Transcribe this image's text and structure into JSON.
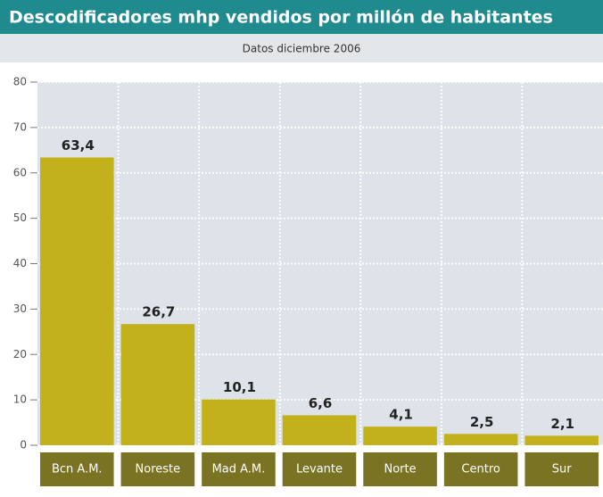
{
  "chart_data": {
    "type": "bar",
    "title": "Descodificadores mhp vendidos por millón de habitantes",
    "subtitle": "Datos diciembre 2006",
    "categories": [
      "Bcn A.M.",
      "Noreste",
      "Mad A.M.",
      "Levante",
      "Norte",
      "Centro",
      "Sur"
    ],
    "values": [
      63.4,
      26.7,
      10.1,
      6.6,
      4.1,
      2.5,
      2.1
    ],
    "value_labels": [
      "63,4",
      "26,7",
      "10,1",
      "6,6",
      "4,1",
      "2,5",
      "2,1"
    ],
    "color": "#c3b11c",
    "ylim": [
      0,
      80
    ],
    "yticks": [
      0,
      10,
      20,
      30,
      40,
      50,
      60,
      70,
      80
    ],
    "grid": true
  }
}
